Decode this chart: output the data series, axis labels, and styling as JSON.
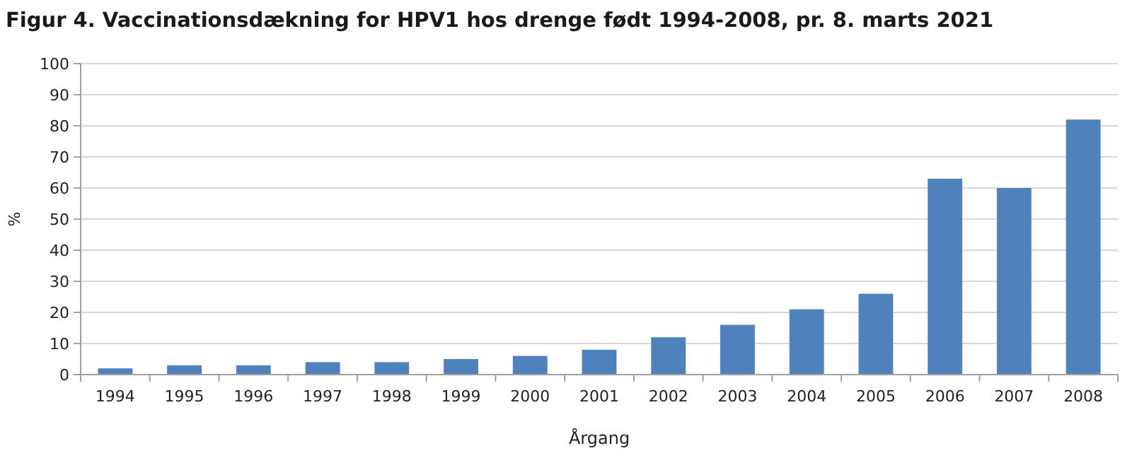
{
  "chart_data": {
    "type": "bar",
    "title": "Figur 4. Vaccinationsdækning for HPV1 hos drenge født 1994-2008, pr. 8. marts 2021",
    "xlabel": "Årgang",
    "ylabel": "%",
    "categories": [
      "1994",
      "1995",
      "1996",
      "1997",
      "1998",
      "1999",
      "2000",
      "2001",
      "2002",
      "2003",
      "2004",
      "2005",
      "2006",
      "2007",
      "2008"
    ],
    "values": [
      2,
      3,
      3,
      4,
      4,
      5,
      6,
      8,
      12,
      16,
      21,
      26,
      63,
      60,
      82
    ],
    "color": "#4f81bd",
    "ylim": [
      0,
      100
    ],
    "yticks": [
      0,
      10,
      20,
      30,
      40,
      50,
      60,
      70,
      80,
      90,
      100
    ],
    "grid": "y"
  }
}
